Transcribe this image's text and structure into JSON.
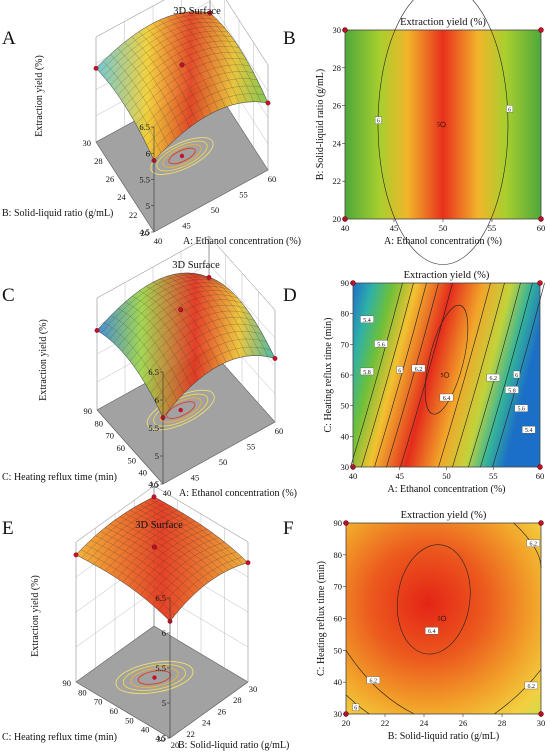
{
  "panels": [
    {
      "id": "A",
      "kind": "surface",
      "title": "3D Surface",
      "zlabel": "Extraction yield (%)",
      "xlabel": "A: Ethanol concentration (%)",
      "ylabel": "B: Solid-liquid ratio (g/mL)",
      "xticks": [
        "40",
        "45",
        "50",
        "55",
        "60"
      ],
      "yticks": [
        "20",
        "22",
        "24",
        "26",
        "28",
        "30"
      ],
      "zticks": [
        "4.5",
        "5",
        "5.5",
        "6",
        "6.5"
      ]
    },
    {
      "id": "B",
      "kind": "contour",
      "title": "Extraction yield (%)",
      "xlabel": "A: Ethanol concentration (%)",
      "ylabel": "B: Solid-liquid ratio (g/mL)",
      "xticks": [
        "40",
        "45",
        "50",
        "55",
        "60"
      ],
      "yticks": [
        "20",
        "22",
        "24",
        "26",
        "28",
        "30"
      ],
      "contour_labels": [
        "6",
        "6"
      ],
      "center_label": "5"
    },
    {
      "id": "C",
      "kind": "surface",
      "title": "3D Surface",
      "zlabel": "Extraction yield (%)",
      "xlabel": "A: Ethanol concentration (%)",
      "ylabel": "C: Heating reflux time (min)",
      "xticks": [
        "40",
        "45",
        "50",
        "55",
        "60"
      ],
      "yticks": [
        "30",
        "40",
        "50",
        "60",
        "70",
        "80",
        "90"
      ],
      "zticks": [
        "4.5",
        "5",
        "5.5",
        "6",
        "6.5"
      ]
    },
    {
      "id": "D",
      "kind": "contour",
      "title": "Extraction yield (%)",
      "xlabel": "A: Ethanol concentration (%)",
      "ylabel": "C: Heating reflux time (min)",
      "xticks": [
        "40",
        "45",
        "50",
        "55",
        "60"
      ],
      "yticks": [
        "30",
        "40",
        "50",
        "60",
        "70",
        "80",
        "90"
      ],
      "contour_labels": [
        "5.4",
        "5.6",
        "5.8",
        "6",
        "6.2",
        "6.4",
        "6.2",
        "6",
        "5.8",
        "5.6",
        "5.4"
      ],
      "center_label": "5"
    },
    {
      "id": "E",
      "kind": "surface",
      "title": "3D Surface",
      "zlabel": "Extraction yield (%)",
      "xlabel": "B: Solid-liquid ratio (g/mL)",
      "ylabel": "C: Heating reflux time (min)",
      "xticks": [
        "20",
        "22",
        "24",
        "26",
        "28",
        "30"
      ],
      "yticks": [
        "30",
        "40",
        "50",
        "60",
        "70",
        "80",
        "90"
      ],
      "zticks": [
        "4.5",
        "5",
        "5.5",
        "6",
        "6.5"
      ]
    },
    {
      "id": "F",
      "kind": "contour",
      "title": "Extraction yield (%)",
      "xlabel": "B: Solid-liquid ratio (g/mL)",
      "ylabel": "C: Heating reflux time (min)",
      "xticks": [
        "20",
        "22",
        "24",
        "26",
        "28",
        "30"
      ],
      "yticks": [
        "30",
        "40",
        "50",
        "60",
        "70",
        "80",
        "90"
      ],
      "contour_labels": [
        "6.2",
        "6.4",
        "6.2",
        "6.2",
        "6"
      ],
      "center_label": "5"
    }
  ],
  "chart_data": [
    {
      "type": "surface",
      "panel": "A",
      "x": "A: Ethanol concentration (%)",
      "xlim": [
        40,
        60
      ],
      "y": "B: Solid-liquid ratio (g/mL)",
      "ylim": [
        20,
        30
      ],
      "z": "Extraction yield (%)",
      "zlim": [
        4.5,
        6.5
      ],
      "peak": {
        "x": 50,
        "y": 25,
        "z": 6.35
      },
      "corner_values": {
        "x40_y20": 5.2,
        "x60_y20": 5.0,
        "x40_y30": 5.3,
        "x60_y30": 5.0
      }
    },
    {
      "type": "contour",
      "panel": "B",
      "xlim": [
        40,
        60
      ],
      "ylim": [
        20,
        30
      ],
      "center": {
        "x": 50,
        "y": 25
      },
      "levels": [
        6,
        6
      ],
      "design_points": [
        [
          40,
          20
        ],
        [
          60,
          20
        ],
        [
          40,
          30
        ],
        [
          60,
          30
        ],
        [
          50,
          25
        ]
      ]
    },
    {
      "type": "surface",
      "panel": "C",
      "x": "A: Ethanol concentration (%)",
      "xlim": [
        40,
        60
      ],
      "y": "C: Heating reflux time (min)",
      "ylim": [
        30,
        90
      ],
      "z": "Extraction yield (%)",
      "zlim": [
        4.5,
        6.5
      ],
      "peak": {
        "x": 50,
        "y": 65,
        "z": 6.4
      },
      "corner_values": {
        "x40_y30": 5.0,
        "x60_y30": 4.9,
        "x40_y90": 5.2,
        "x60_y90": 4.8
      }
    },
    {
      "type": "contour",
      "panel": "D",
      "xlim": [
        40,
        60
      ],
      "ylim": [
        30,
        90
      ],
      "center": {
        "x": 50,
        "y": 65
      },
      "levels": [
        5.4,
        5.6,
        5.8,
        6,
        6.2,
        6.4
      ],
      "design_points": [
        [
          40,
          30
        ],
        [
          60,
          30
        ],
        [
          40,
          90
        ],
        [
          60,
          90
        ],
        [
          50,
          60
        ]
      ]
    },
    {
      "type": "surface",
      "panel": "E",
      "x": "B: Solid-liquid ratio (g/mL)",
      "xlim": [
        20,
        30
      ],
      "y": "C: Heating reflux time (min)",
      "ylim": [
        30,
        90
      ],
      "z": "Extraction yield (%)",
      "zlim": [
        4.5,
        6.5
      ],
      "peak": {
        "x": 25,
        "y": 65,
        "z": 6.45
      },
      "corner_values": {
        "x20_y30": 5.7,
        "x30_y30": 5.8,
        "x20_y90": 6.0,
        "x30_y90": 6.1
      }
    },
    {
      "type": "contour",
      "panel": "F",
      "xlim": [
        20,
        30
      ],
      "ylim": [
        30,
        90
      ],
      "center": {
        "x": 24.5,
        "y": 66
      },
      "levels": [
        6,
        6.2,
        6.4
      ],
      "design_points": [
        [
          20,
          30
        ],
        [
          30,
          30
        ],
        [
          20,
          90
        ],
        [
          30,
          90
        ],
        [
          25,
          60
        ]
      ]
    }
  ]
}
